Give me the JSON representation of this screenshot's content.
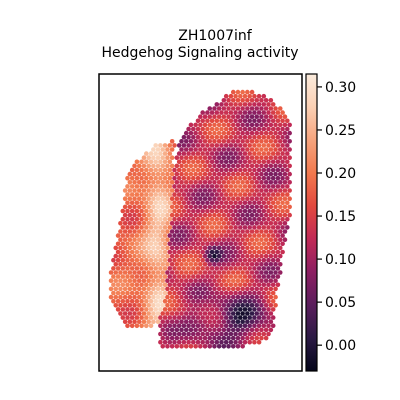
{
  "chart_data": {
    "type": "heatmap",
    "title": "ZH1007inf",
    "subtitle": "Hedgehog Signaling activity",
    "xlabel": "",
    "ylabel": "",
    "plot_kind": "spatial hexagonal spot map",
    "axes_ticks_visible": false,
    "grid": false,
    "colormap": "rocket",
    "colorbar": {
      "location": "right",
      "range": [
        -0.03,
        0.315
      ],
      "ticks": [
        0.0,
        0.05,
        0.1,
        0.15,
        0.2,
        0.25,
        0.3
      ],
      "tick_labels": [
        "0.00",
        "0.05",
        "0.10",
        "0.15",
        "0.20",
        "0.25",
        "0.30"
      ]
    },
    "colors": {
      "colormap_stops": [
        "#03051a",
        "#2b1a44",
        "#5a1e5c",
        "#8c1f62",
        "#c12a56",
        "#e2493f",
        "#f2794e",
        "#f6a47d",
        "#fad0b4",
        "#faebdd"
      ],
      "frame": "#000000",
      "background": "#ffffff"
    },
    "region_means": {
      "left_strip": 0.21,
      "main_tissue": 0.13,
      "bottom_right_cluster": 0.02,
      "center_dark_spot": 0.01
    }
  }
}
